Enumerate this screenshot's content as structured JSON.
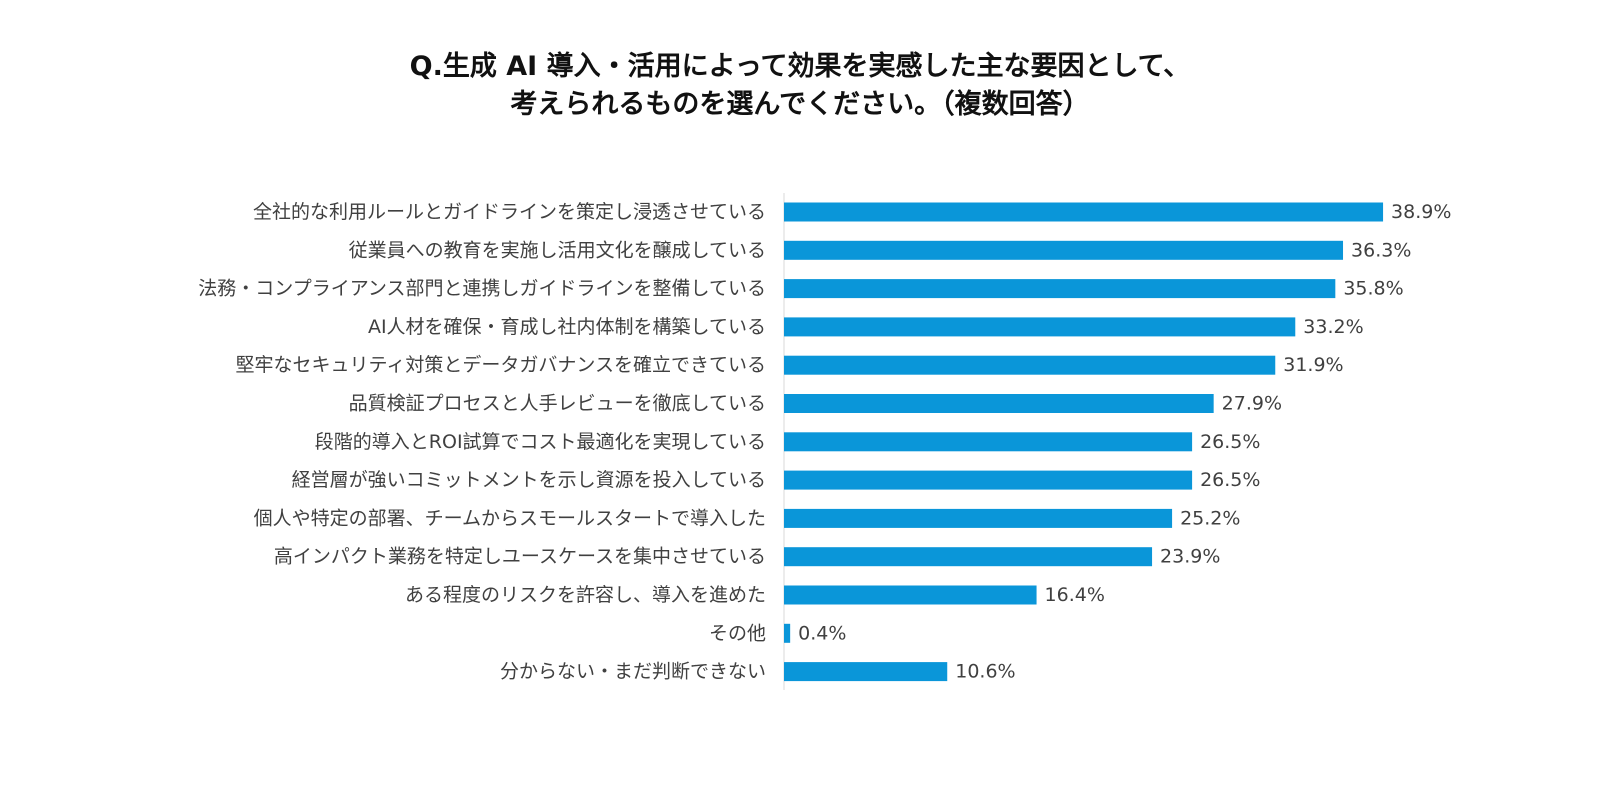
{
  "title": {
    "line1": "Q.生成 AI 導入・活用によって効果を実感した主な要因として、",
    "line2": "考えられるものを選んでください。（複数回答）"
  },
  "colors": {
    "bar": "#0a96d9",
    "axis": "#d9d9d9",
    "text": "#404040"
  },
  "chart_data": {
    "type": "bar",
    "orientation": "horizontal",
    "categories": [
      "全社的な利用ルールとガイドラインを策定し浸透させている",
      "従業員への教育を実施し活用文化を醸成している",
      "法務・コンプライアンス部門と連携しガイドラインを整備している",
      "AI人材を確保・育成し社内体制を構築している",
      "堅牢なセキュリティ対策とデータガバナンスを確立できている",
      "品質検証プロセスと人手レビューを徹底している",
      "段階的導入とROI試算でコスト最適化を実現している",
      "経営層が強いコミットメントを示し資源を投入している",
      "個人や特定の部署、チームからスモールスタートで導入した",
      "高インパクト業務を特定しユースケースを集中させている",
      "ある程度のリスクを許容し、導入を進めた",
      "その他",
      "分からない・まだ判断できない"
    ],
    "values": [
      38.9,
      36.3,
      35.8,
      33.2,
      31.9,
      27.9,
      26.5,
      26.5,
      25.2,
      23.9,
      16.4,
      0.4,
      10.6
    ],
    "value_labels": [
      "38.9%",
      "36.3%",
      "35.8%",
      "33.2%",
      "31.9%",
      "27.9%",
      "26.5%",
      "26.5%",
      "25.2%",
      "23.9%",
      "16.4%",
      "0.4%",
      "10.6%"
    ],
    "unit": "%",
    "grid": false,
    "legend": "none"
  }
}
